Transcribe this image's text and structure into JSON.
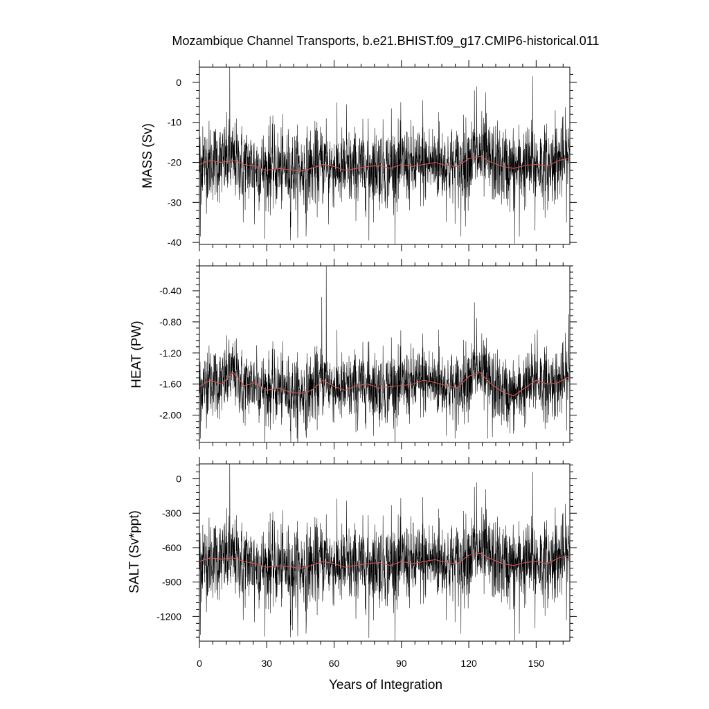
{
  "figure": {
    "title": "Mozambique Channel Transports, b.e21.BHIST.f09_g17.CMIP6-historical.011",
    "xlabel": "Years of Integration",
    "x_tick_labels": [
      "0",
      "30",
      "60",
      "90",
      "120",
      "150"
    ]
  },
  "colors": {
    "monthly_line": "#000000",
    "smoothed_line": "#d9534f",
    "axis": "#000000",
    "background": "#ffffff"
  },
  "chart_data": [
    {
      "type": "line",
      "panel": "mass",
      "ylabel": "MASS (Sv)",
      "xlim": [
        0,
        165
      ],
      "ylim": [
        -40.5,
        3.8
      ],
      "x_ticks": [
        0,
        30,
        60,
        90,
        120,
        150
      ],
      "y_ticks": [
        0,
        -10,
        -20,
        -30,
        -40
      ],
      "y_tick_labels": [
        "0",
        "-10",
        "-20",
        "-30",
        "-40"
      ],
      "grid": false,
      "series": [
        {
          "role": "monthly",
          "color": "#000000",
          "mean": -20.5,
          "stdev": 5.5,
          "x": [
            0.5,
            1.5,
            4.5,
            13.5,
            19.5,
            24.5,
            31.5,
            40.5,
            47.5,
            56.5,
            57.5,
            65.5,
            75.5,
            85.5,
            99.5,
            106.5,
            116.5,
            118.5,
            122.5,
            123.5,
            127.5,
            140.5,
            142.5,
            148.5,
            149.5,
            158.5,
            163.5
          ],
          "y": [
            -38.5,
            -11.0,
            -27.0,
            3.8,
            -35.0,
            -35.5,
            -8.5,
            -39.5,
            -38.5,
            -9.0,
            -35.5,
            -5.5,
            -39.5,
            -6.5,
            -4.5,
            -7.5,
            -38.5,
            -36.0,
            -2.0,
            -1.0,
            -2.5,
            -40.3,
            -38.5,
            1.5,
            -37.0,
            -7.0,
            -35.0
          ]
        },
        {
          "role": "smoothed",
          "color": "#d9534f",
          "x": [
            0,
            5,
            10,
            15,
            20,
            25,
            30,
            35,
            40,
            45,
            50,
            55,
            60,
            65,
            70,
            75,
            80,
            85,
            90,
            95,
            100,
            105,
            110,
            115,
            120,
            125,
            130,
            135,
            140,
            145,
            150,
            155,
            160,
            165
          ],
          "y": [
            -20.5,
            -19.5,
            -20.0,
            -19.5,
            -20.5,
            -21.0,
            -22.0,
            -21.5,
            -21.8,
            -22.2,
            -21.5,
            -20.5,
            -21.0,
            -22.0,
            -21.5,
            -21.0,
            -20.8,
            -21.5,
            -20.5,
            -21.0,
            -20.5,
            -20.0,
            -20.8,
            -21.0,
            -19.0,
            -18.5,
            -20.0,
            -21.0,
            -21.5,
            -20.8,
            -20.5,
            -21.0,
            -19.5,
            -19.0
          ]
        }
      ]
    },
    {
      "type": "line",
      "panel": "heat",
      "ylabel": "HEAT (PW)",
      "xlim": [
        0,
        165
      ],
      "ylim": [
        -2.35,
        -0.08
      ],
      "x_ticks": [
        0,
        30,
        60,
        90,
        120,
        150
      ],
      "y_ticks": [
        -0.4,
        -0.8,
        -1.2,
        -1.6,
        -2.0
      ],
      "y_tick_labels": [
        "-0.40",
        "-0.80",
        "-1.20",
        "-1.60",
        "-2.00"
      ],
      "grid": false,
      "series": [
        {
          "role": "monthly",
          "color": "#000000",
          "mean": -1.63,
          "stdev": 0.25,
          "x": [
            0.5,
            3.5,
            13.5,
            19.5,
            25.5,
            40.5,
            43.5,
            47.5,
            50.5,
            54.5,
            56.5,
            70.5,
            75.5,
            85.5,
            99.5,
            106.5,
            114.5,
            122.5,
            123.5,
            128.5,
            130.5,
            140.5,
            149.5,
            150.5,
            154.5,
            158.5,
            164.5
          ],
          "y": [
            -2.3,
            -1.2,
            -1.2,
            -2.1,
            -1.1,
            -2.2,
            -2.3,
            -2.25,
            -1.45,
            -0.48,
            -0.08,
            -2.2,
            -1.05,
            -1.0,
            -0.95,
            -0.9,
            -2.2,
            -0.55,
            -0.75,
            -2.3,
            -2.28,
            -1.5,
            -0.95,
            -0.9,
            -2.1,
            -2.0,
            -0.7
          ]
        },
        {
          "role": "smoothed",
          "color": "#d9534f",
          "x": [
            0,
            5,
            10,
            15,
            20,
            25,
            30,
            35,
            40,
            45,
            50,
            55,
            60,
            65,
            70,
            75,
            80,
            85,
            90,
            95,
            100,
            105,
            110,
            115,
            120,
            125,
            130,
            135,
            140,
            145,
            150,
            155,
            160,
            165
          ],
          "y": [
            -1.63,
            -1.55,
            -1.6,
            -1.45,
            -1.62,
            -1.58,
            -1.68,
            -1.65,
            -1.7,
            -1.72,
            -1.68,
            -1.55,
            -1.63,
            -1.68,
            -1.62,
            -1.6,
            -1.65,
            -1.63,
            -1.62,
            -1.6,
            -1.55,
            -1.58,
            -1.62,
            -1.65,
            -1.5,
            -1.45,
            -1.6,
            -1.7,
            -1.75,
            -1.65,
            -1.55,
            -1.6,
            -1.58,
            -1.5
          ]
        }
      ]
    },
    {
      "type": "line",
      "panel": "salt",
      "ylabel": "SALT (Sv*ppt)",
      "xlim": [
        0,
        165
      ],
      "ylim": [
        -1415,
        130
      ],
      "x_ticks": [
        0,
        30,
        60,
        90,
        120,
        150
      ],
      "y_ticks": [
        0,
        -300,
        -600,
        -900,
        -1200
      ],
      "y_tick_labels": [
        "0",
        "-300",
        "-600",
        "-900",
        "-1200"
      ],
      "grid": false,
      "series": [
        {
          "role": "monthly",
          "color": "#000000",
          "mean": -720,
          "stdev": 195,
          "x": [
            0.5,
            1.5,
            4.5,
            13.5,
            19.5,
            24.5,
            31.5,
            40.5,
            41.5,
            47.5,
            56.5,
            65.5,
            75.5,
            85.5,
            99.5,
            106.5,
            116.5,
            122.5,
            123.5,
            127.5,
            140.5,
            142.5,
            148.5,
            149.5,
            158.5,
            163.5
          ],
          "y": [
            -1360,
            -400,
            -950,
            130,
            -1230,
            -1250,
            -300,
            -1380,
            -1320,
            -1350,
            -310,
            -190,
            -1385,
            -230,
            -160,
            -260,
            -1350,
            -70,
            -30,
            -90,
            -1410,
            -1350,
            60,
            -1300,
            -250,
            -1230
          ]
        },
        {
          "role": "smoothed",
          "color": "#d9534f",
          "x": [
            0,
            5,
            10,
            15,
            20,
            25,
            30,
            35,
            40,
            45,
            50,
            55,
            60,
            65,
            70,
            75,
            80,
            85,
            90,
            95,
            100,
            105,
            110,
            115,
            120,
            125,
            130,
            135,
            140,
            145,
            150,
            155,
            160,
            165
          ],
          "y": [
            -720,
            -690,
            -700,
            -690,
            -720,
            -740,
            -770,
            -760,
            -765,
            -780,
            -755,
            -720,
            -740,
            -770,
            -755,
            -740,
            -730,
            -755,
            -720,
            -740,
            -720,
            -705,
            -730,
            -740,
            -665,
            -650,
            -700,
            -740,
            -755,
            -730,
            -720,
            -740,
            -690,
            -670
          ]
        }
      ]
    }
  ]
}
